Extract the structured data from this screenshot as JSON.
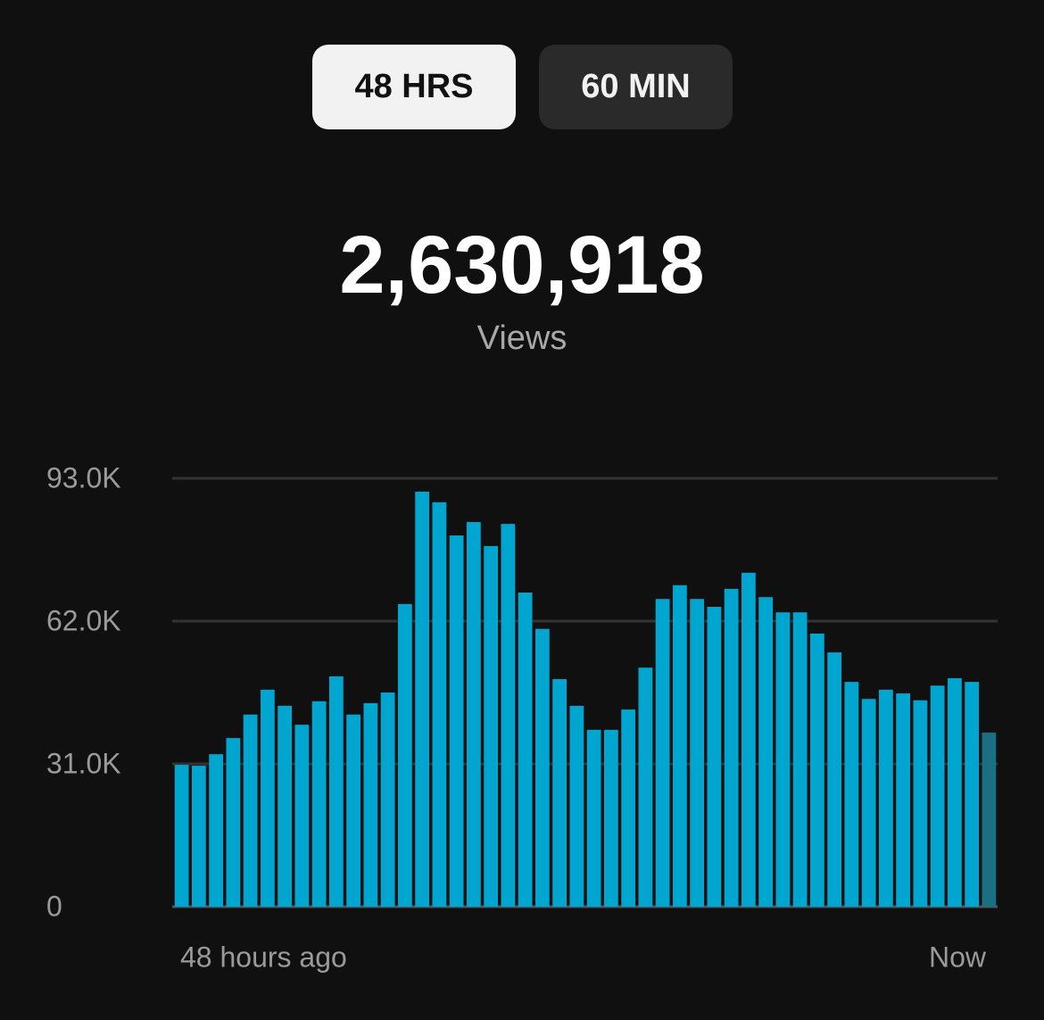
{
  "tabs": [
    {
      "label": "48 HRS",
      "selected": true
    },
    {
      "label": "60 MIN",
      "selected": false
    }
  ],
  "total": "2,630,918",
  "total_label": "Views",
  "chart_data": {
    "type": "bar",
    "categories": [
      "48 hours ago",
      null,
      null,
      null,
      null,
      null,
      null,
      null,
      null,
      null,
      null,
      null,
      null,
      null,
      null,
      null,
      null,
      null,
      null,
      null,
      null,
      null,
      null,
      null,
      null,
      null,
      null,
      null,
      null,
      null,
      null,
      null,
      null,
      null,
      null,
      null,
      null,
      null,
      null,
      null,
      null,
      null,
      null,
      null,
      null,
      null,
      null,
      "Now"
    ],
    "values": [
      30800,
      30600,
      33100,
      36600,
      41700,
      47100,
      43600,
      39500,
      44600,
      50000,
      41700,
      44200,
      46500,
      65700,
      90100,
      87800,
      80600,
      83500,
      78300,
      83100,
      68200,
      60300,
      49400,
      43600,
      38400,
      38400,
      42800,
      51900,
      66800,
      69800,
      66800,
      65100,
      69000,
      72500,
      67200,
      63900,
      63900,
      59300,
      55200,
      48800,
      45100,
      47100,
      46300,
      44800,
      48000,
      49600,
      48800,
      37800
    ],
    "color": "#00a5d0",
    "last_bar_color": "#1a6f82",
    "ylim": [
      0,
      93000
    ],
    "yticks": [
      0,
      {
        "value": 31000,
        "label": "31.0K"
      },
      {
        "value": 62000,
        "label": "62.0K"
      },
      {
        "value": 93000,
        "label": "93.0K"
      }
    ],
    "grid": true
  }
}
